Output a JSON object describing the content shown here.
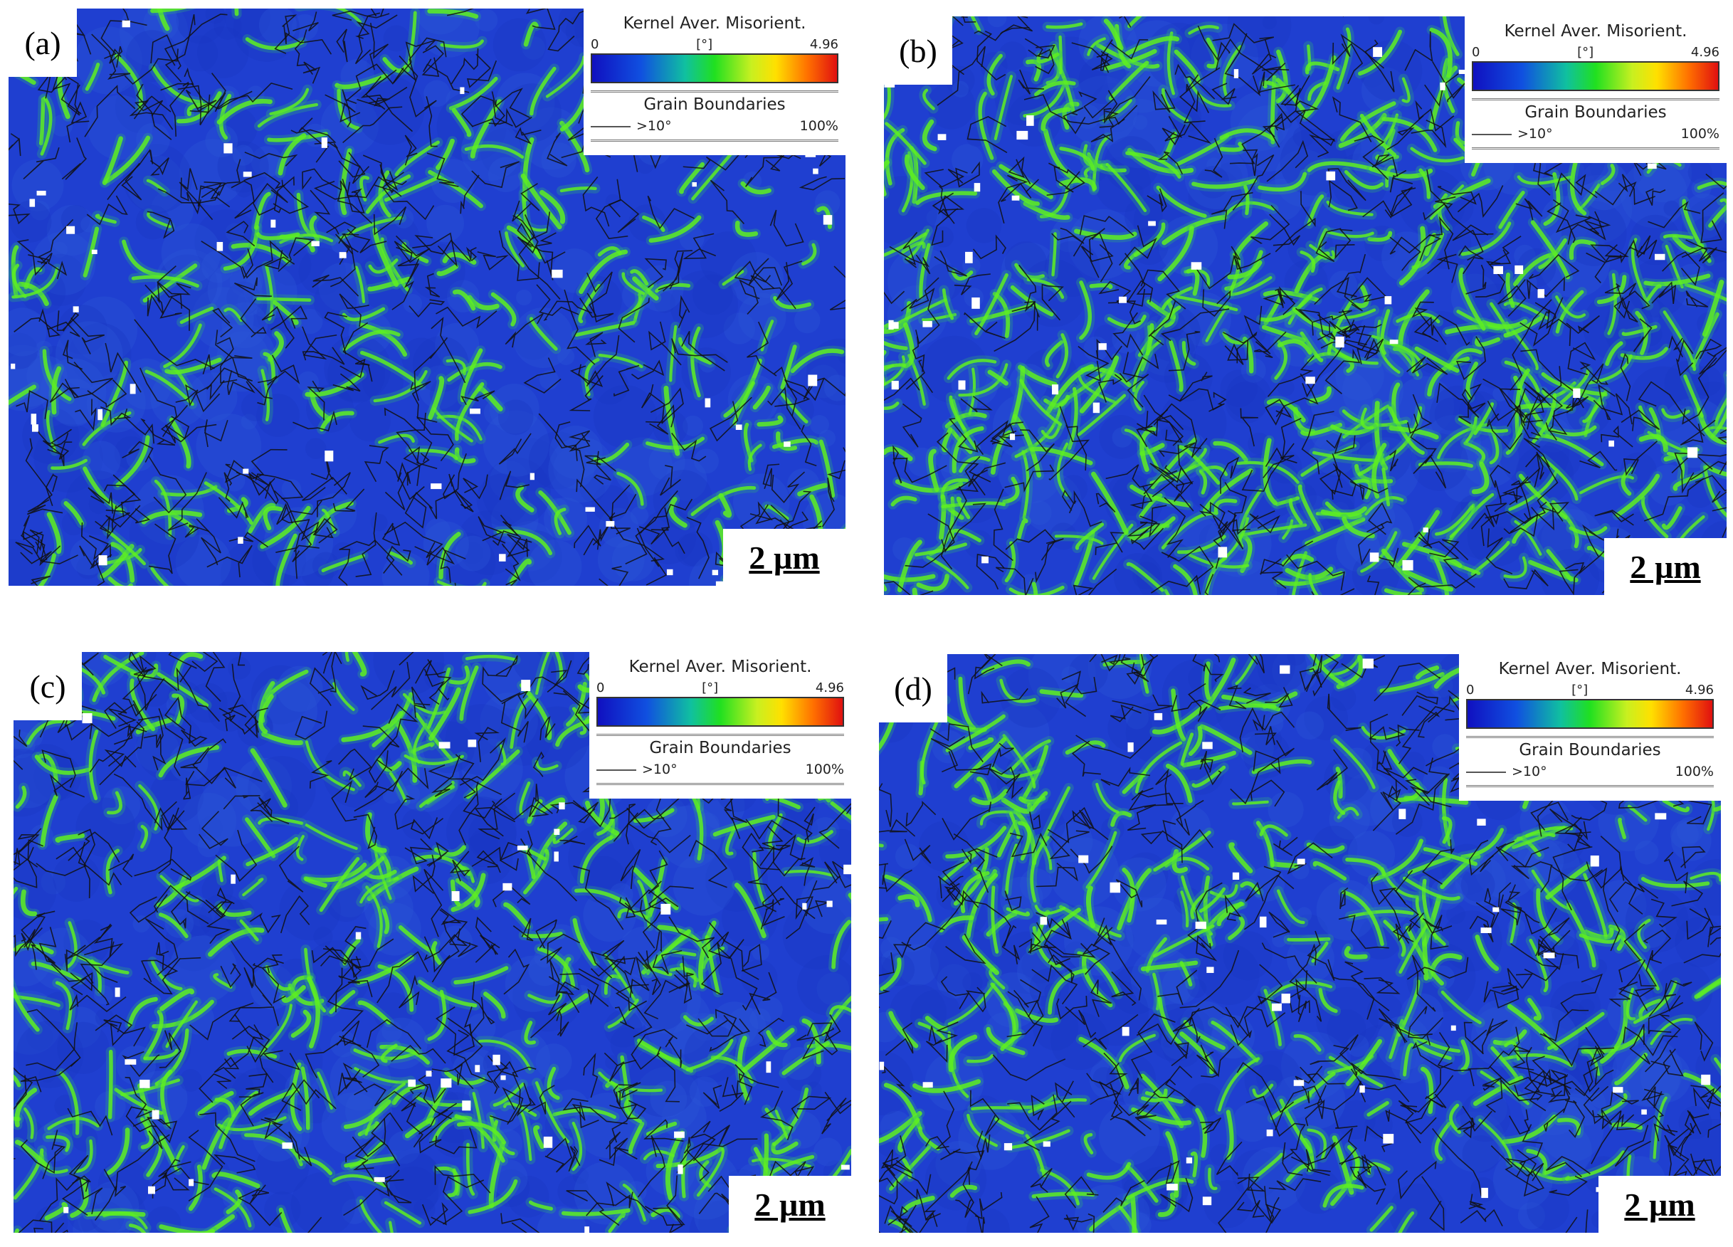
{
  "panels": [
    {
      "label": "(a)",
      "legend": {
        "title": "Kernel Aver. Misorient.",
        "min": "0",
        "unit": "[°]",
        "max": "4.96",
        "boundaries_title": "Grain Boundaries",
        "boundary_type": ">10°",
        "boundary_fraction": "100%"
      },
      "scale_bar": "2 µm"
    },
    {
      "label": "(b)",
      "legend": {
        "title": "Kernel Aver. Misorient.",
        "min": "0",
        "unit": "[°]",
        "max": "4.96",
        "boundaries_title": "Grain Boundaries",
        "boundary_type": ">10°",
        "boundary_fraction": "100%"
      },
      "scale_bar": "2 µm"
    },
    {
      "label": "(c)",
      "legend": {
        "title": "Kernel Aver. Misorient.",
        "min": "0",
        "unit": "[°]",
        "max": "4.96",
        "boundaries_title": "Grain Boundaries",
        "boundary_type": ">10°",
        "boundary_fraction": "100%"
      },
      "scale_bar": "2 µm"
    },
    {
      "label": "(d)",
      "legend": {
        "title": "Kernel Aver. Misorient.",
        "min": "0",
        "unit": "[°]",
        "max": "4.96",
        "boundaries_title": "Grain Boundaries",
        "boundary_type": ">10°",
        "boundary_fraction": "100%"
      },
      "scale_bar": "2 µm"
    }
  ]
}
